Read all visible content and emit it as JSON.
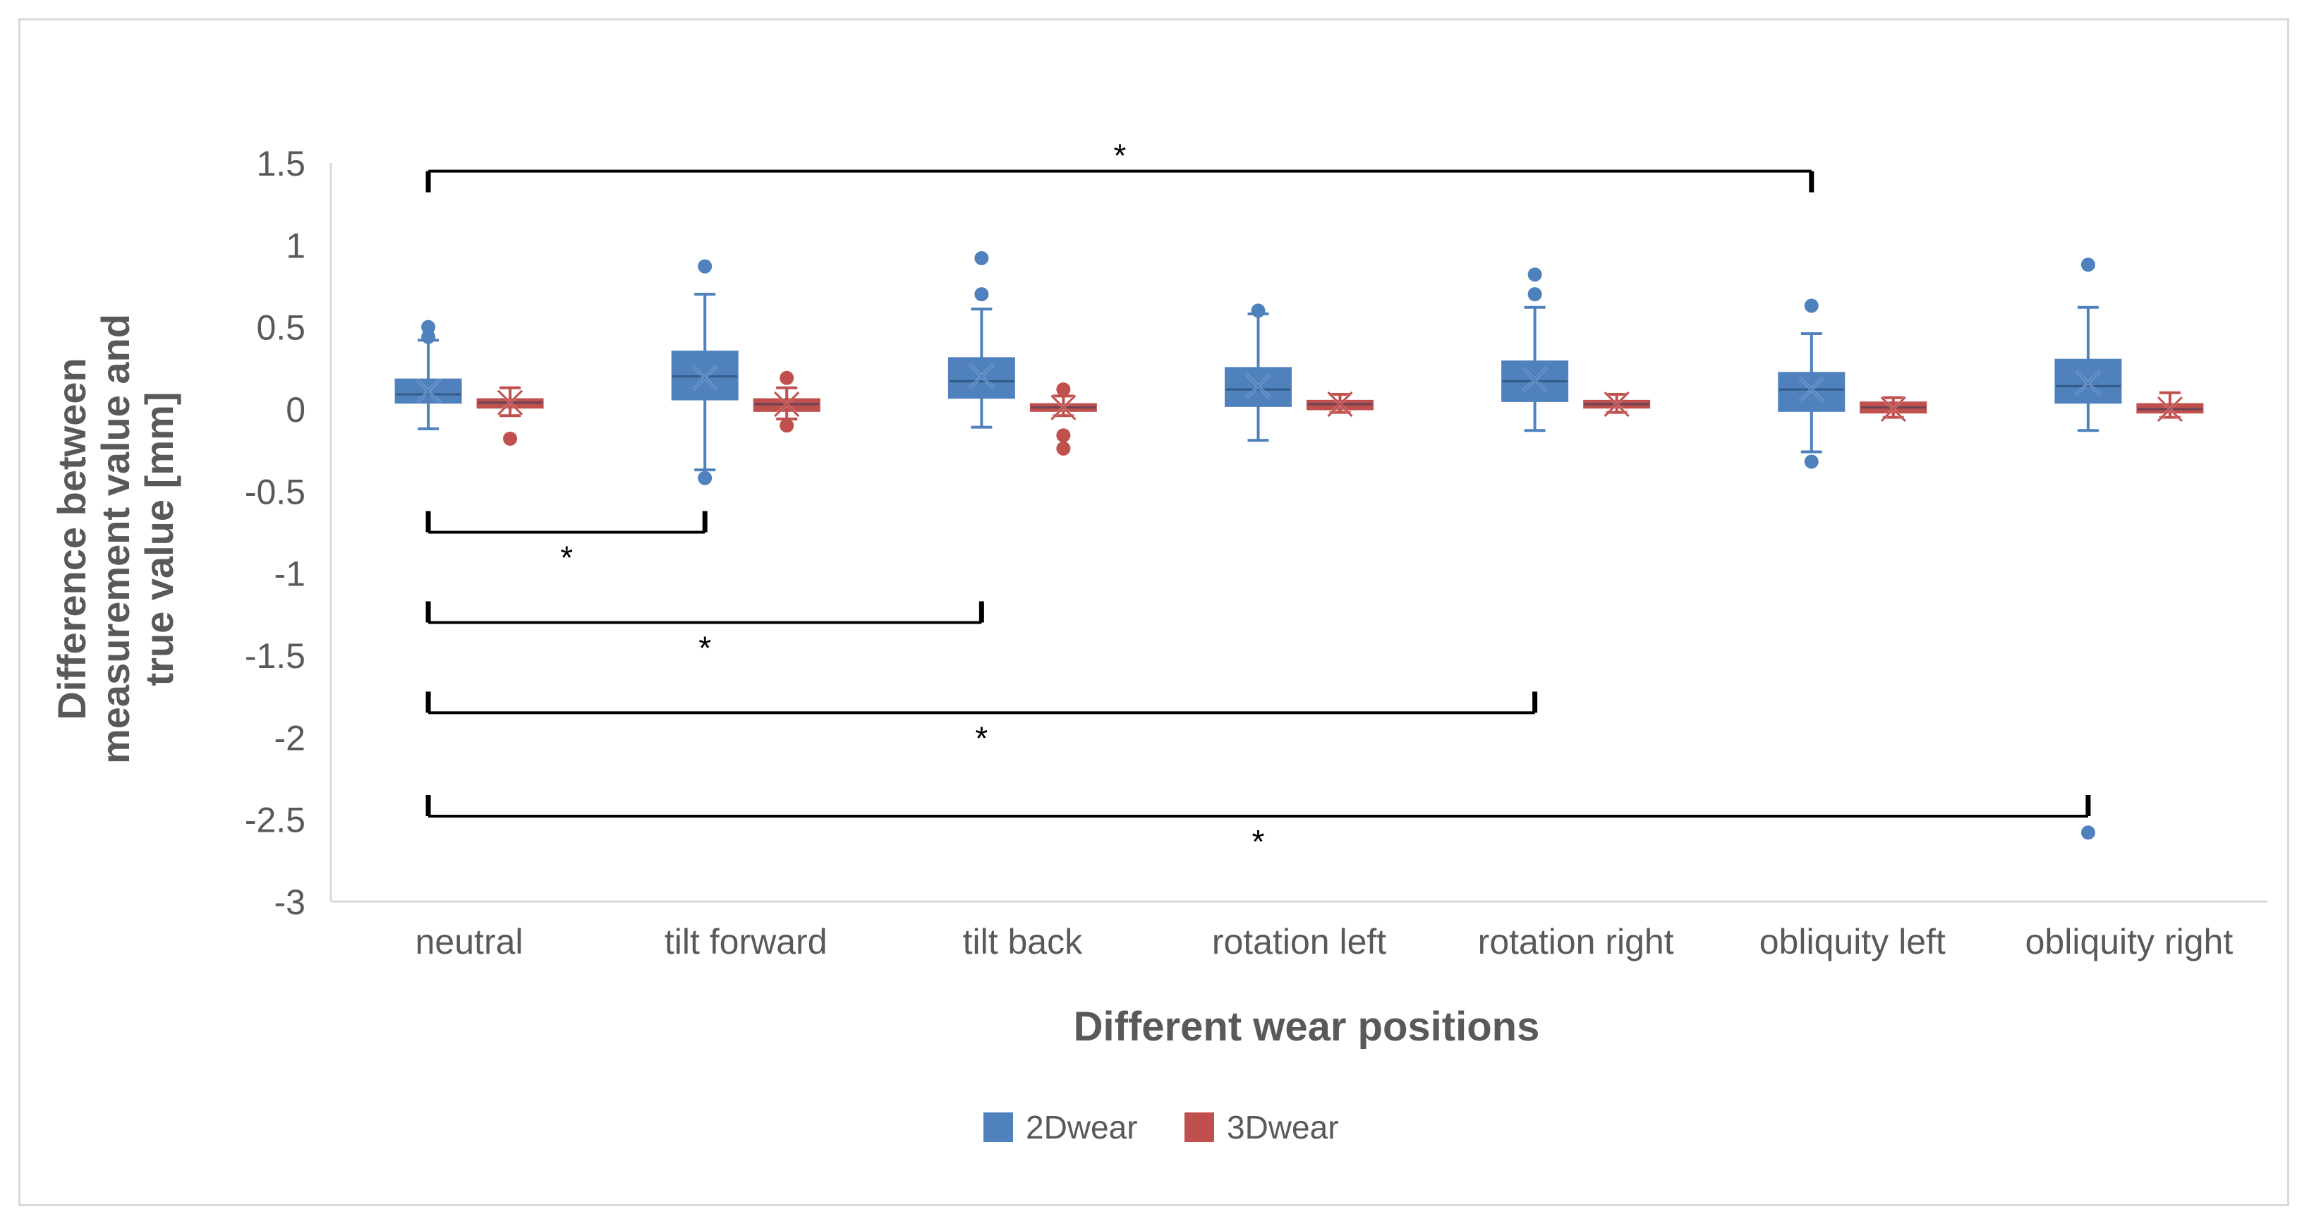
{
  "chart_data": {
    "type": "box",
    "title": "",
    "xlabel": "Different wear positions",
    "ylabel": "Difference between measurement value and true value [mm]",
    "ylabel_lines": [
      "Difference between",
      "measurement value and",
      "true value [mm]"
    ],
    "ylim": [
      -3,
      1.5
    ],
    "yticks": [
      1.5,
      1,
      0.5,
      0,
      -0.5,
      -1,
      -1.5,
      -2,
      -2.5,
      -3
    ],
    "ytick_labels": [
      "1.5",
      "1",
      "0.5",
      "0",
      "-0.5",
      "-1",
      "-1.5",
      "-2",
      "-2.5",
      "-3"
    ],
    "grid": false,
    "legend_position": "bottom",
    "categories": [
      "neutral",
      "tilt forward",
      "tilt back",
      "rotation left",
      "rotation right",
      "obliquity left",
      "obliquity right"
    ],
    "series": [
      {
        "name": "2Dwear",
        "color": "#4f81bd",
        "boxes": [
          {
            "min": -0.12,
            "q1": 0.04,
            "median": 0.09,
            "q3": 0.18,
            "max": 0.42,
            "mean": 0.11,
            "outliers": [
              0.5,
              0.44
            ]
          },
          {
            "min": -0.37,
            "q1": 0.06,
            "median": 0.2,
            "q3": 0.35,
            "max": 0.7,
            "mean": 0.19,
            "outliers": [
              0.87,
              -0.42
            ]
          },
          {
            "min": -0.11,
            "q1": 0.07,
            "median": 0.17,
            "q3": 0.31,
            "max": 0.61,
            "mean": 0.2,
            "outliers": [
              0.92,
              0.7
            ]
          },
          {
            "min": -0.19,
            "q1": 0.02,
            "median": 0.12,
            "q3": 0.25,
            "max": 0.58,
            "mean": 0.14,
            "outliers": [
              0.6
            ]
          },
          {
            "min": -0.13,
            "q1": 0.05,
            "median": 0.17,
            "q3": 0.29,
            "max": 0.62,
            "mean": 0.18,
            "outliers": [
              0.82,
              0.7
            ]
          },
          {
            "min": -0.26,
            "q1": -0.01,
            "median": 0.12,
            "q3": 0.22,
            "max": 0.46,
            "mean": 0.12,
            "outliers": [
              0.63,
              -0.32
            ]
          },
          {
            "min": -0.13,
            "q1": 0.04,
            "median": 0.14,
            "q3": 0.3,
            "max": 0.62,
            "mean": 0.16,
            "outliers": [
              0.88,
              -2.58
            ]
          }
        ]
      },
      {
        "name": "3Dwear",
        "color": "#c0504d",
        "boxes": [
          {
            "min": -0.04,
            "q1": 0.01,
            "median": 0.04,
            "q3": 0.06,
            "max": 0.13,
            "mean": 0.04,
            "outliers": [
              -0.18
            ]
          },
          {
            "min": -0.06,
            "q1": -0.01,
            "median": 0.03,
            "q3": 0.06,
            "max": 0.13,
            "mean": 0.03,
            "outliers": [
              0.19,
              -0.1
            ]
          },
          {
            "min": -0.04,
            "q1": -0.01,
            "median": 0.01,
            "q3": 0.03,
            "max": 0.08,
            "mean": 0.01,
            "outliers": [
              0.12,
              -0.16,
              -0.24
            ]
          },
          {
            "min": -0.02,
            "q1": 0.0,
            "median": 0.03,
            "q3": 0.05,
            "max": 0.09,
            "mean": 0.03,
            "outliers": []
          },
          {
            "min": -0.02,
            "q1": 0.01,
            "median": 0.03,
            "q3": 0.05,
            "max": 0.09,
            "mean": 0.03,
            "outliers": []
          },
          {
            "min": -0.05,
            "q1": -0.02,
            "median": 0.01,
            "q3": 0.04,
            "max": 0.07,
            "mean": 0.0,
            "outliers": []
          },
          {
            "min": -0.05,
            "q1": -0.02,
            "median": 0.0,
            "q3": 0.03,
            "max": 0.1,
            "mean": 0.0,
            "outliers": []
          }
        ]
      }
    ],
    "significance_brackets": [
      {
        "from": 0,
        "to": 5,
        "y": 1.45,
        "label": "*",
        "orientation": "down"
      },
      {
        "from": 0,
        "to": 1,
        "y": -0.75,
        "label": "*",
        "orientation": "up"
      },
      {
        "from": 0,
        "to": 2,
        "y": -1.3,
        "label": "*",
        "orientation": "up"
      },
      {
        "from": 0,
        "to": 4,
        "y": -1.85,
        "label": "*",
        "orientation": "up"
      },
      {
        "from": 0,
        "to": 6,
        "y": -2.48,
        "label": "*",
        "orientation": "up"
      }
    ]
  }
}
